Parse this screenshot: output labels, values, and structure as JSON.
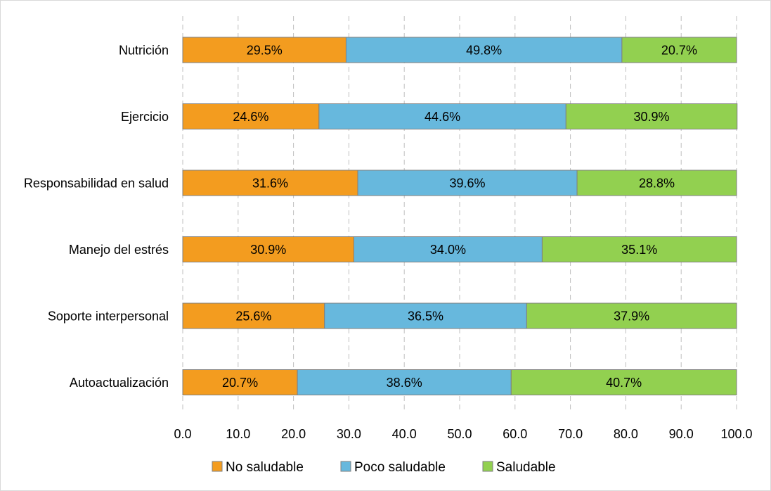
{
  "chart_data": {
    "type": "bar",
    "orientation": "horizontal",
    "stacked": true,
    "categories": [
      "Nutrición",
      "Ejercicio",
      "Responsabilidad en salud",
      "Manejo del estrés",
      "Soporte interpersonal",
      "Autoactualización"
    ],
    "series": [
      {
        "name": "No saludable",
        "color": "#f39c1f",
        "values": [
          29.5,
          24.6,
          31.6,
          30.9,
          25.6,
          20.7
        ],
        "labels": [
          "29.5%",
          "24.6%",
          "31.6%",
          "30.9%",
          "25.6%",
          "20.7%"
        ]
      },
      {
        "name": "Poco saludable",
        "color": "#67b8dd",
        "values": [
          49.8,
          44.6,
          39.6,
          34.0,
          36.5,
          38.6
        ],
        "labels": [
          "49.8%",
          "44.6%",
          "39.6%",
          "34.0%",
          "36.5%",
          "38.6%"
        ]
      },
      {
        "name": "Saludable",
        "color": "#92d050",
        "values": [
          20.7,
          30.9,
          28.8,
          35.1,
          37.9,
          40.7
        ],
        "labels": [
          "20.7%",
          "30.9%",
          "28.8%",
          "35.1%",
          "37.9%",
          "40.7%"
        ]
      }
    ],
    "x_ticks": [
      "0.0",
      "10.0",
      "20.0",
      "30.0",
      "40.0",
      "50.0",
      "60.0",
      "70.0",
      "80.0",
      "90.0",
      "100.0"
    ],
    "xlim": [
      0,
      100
    ],
    "grid": "vertical",
    "grid_style": "dashed",
    "legend_position": "bottom",
    "title": "",
    "xlabel": "",
    "ylabel": ""
  }
}
